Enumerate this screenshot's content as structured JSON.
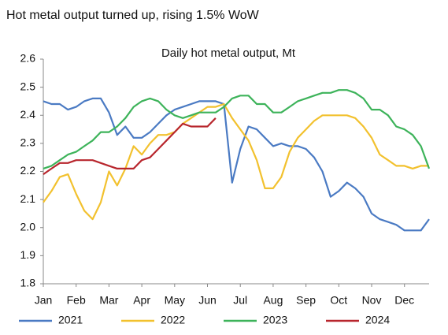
{
  "chart_data": {
    "type": "line",
    "headline": "Hot metal output turned up, rising 1.5% WoW",
    "title": "Daily hot metal output, Mt",
    "categories": [
      "Jan",
      null,
      null,
      null,
      "Feb",
      null,
      null,
      null,
      "Mar",
      null,
      null,
      null,
      "Apr",
      null,
      null,
      null,
      "May",
      null,
      null,
      null,
      "Jun",
      null,
      null,
      null,
      "Jul",
      null,
      null,
      null,
      "Aug",
      null,
      null,
      null,
      "Sep",
      null,
      null,
      null,
      "Oct",
      null,
      null,
      null,
      "Nov",
      null,
      null,
      null,
      "Dec",
      null,
      null,
      null
    ],
    "ylim": [
      1.8,
      2.6
    ],
    "yticks": [
      {
        "value": 1.8,
        "label": "1.8"
      },
      {
        "value": 1.9,
        "label": "1.9"
      },
      {
        "value": 2.0,
        "label": "2.0"
      },
      {
        "value": 2.1,
        "label": "2.1"
      },
      {
        "value": 2.2,
        "label": "2.2"
      },
      {
        "value": 2.3,
        "label": "2.3"
      },
      {
        "value": 2.4,
        "label": "2.4"
      },
      {
        "value": 2.5,
        "label": "2.5"
      },
      {
        "value": 2.6,
        "label": "2.6"
      }
    ],
    "legend": "bottom",
    "series": [
      {
        "name": "2021",
        "color": "#4a7ac3",
        "values": [
          2.45,
          2.44,
          2.44,
          2.42,
          2.43,
          2.45,
          2.46,
          2.46,
          2.41,
          2.33,
          2.36,
          2.32,
          2.32,
          2.34,
          2.37,
          2.4,
          2.42,
          2.43,
          2.44,
          2.45,
          2.45,
          2.45,
          2.44,
          2.16,
          2.28,
          2.36,
          2.35,
          2.32,
          2.29,
          2.3,
          2.29,
          2.29,
          2.28,
          2.25,
          2.2,
          2.11,
          2.13,
          2.16,
          2.14,
          2.11,
          2.05,
          2.03,
          2.02,
          2.01,
          1.99,
          1.99,
          1.99,
          2.03
        ]
      },
      {
        "name": "2022",
        "color": "#f2c12e",
        "values": [
          2.09,
          2.13,
          2.18,
          2.19,
          2.12,
          2.06,
          2.03,
          2.09,
          2.2,
          2.15,
          2.21,
          2.29,
          2.26,
          2.3,
          2.33,
          2.33,
          2.34,
          2.37,
          2.39,
          2.41,
          2.43,
          2.43,
          2.44,
          2.39,
          2.35,
          2.31,
          2.24,
          2.14,
          2.14,
          2.18,
          2.27,
          2.32,
          2.35,
          2.38,
          2.4,
          2.4,
          2.4,
          2.4,
          2.39,
          2.36,
          2.32,
          2.26,
          2.24,
          2.22,
          2.22,
          2.21,
          2.22,
          2.22
        ]
      },
      {
        "name": "2023",
        "color": "#3db35a",
        "values": [
          2.21,
          2.22,
          2.24,
          2.26,
          2.27,
          2.29,
          2.31,
          2.34,
          2.34,
          2.36,
          2.39,
          2.43,
          2.45,
          2.46,
          2.45,
          2.42,
          2.4,
          2.39,
          2.4,
          2.41,
          2.41,
          2.41,
          2.43,
          2.46,
          2.47,
          2.47,
          2.44,
          2.44,
          2.41,
          2.41,
          2.43,
          2.45,
          2.46,
          2.47,
          2.48,
          2.48,
          2.49,
          2.49,
          2.48,
          2.46,
          2.42,
          2.42,
          2.4,
          2.36,
          2.35,
          2.33,
          2.29,
          2.21
        ]
      },
      {
        "name": "2024",
        "color": "#b8262d",
        "values": [
          2.19,
          2.21,
          2.23,
          2.23,
          2.24,
          2.24,
          2.24,
          2.23,
          2.22,
          2.21,
          2.21,
          2.21,
          2.24,
          2.25,
          2.28,
          2.31,
          2.34,
          2.37,
          2.36,
          2.36,
          2.36,
          2.39,
          null,
          null,
          null,
          null,
          null,
          null,
          null,
          null,
          null,
          null,
          null,
          null,
          null,
          null,
          null,
          null,
          null,
          null,
          null,
          null,
          null,
          null,
          null,
          null,
          null,
          null
        ]
      }
    ]
  }
}
